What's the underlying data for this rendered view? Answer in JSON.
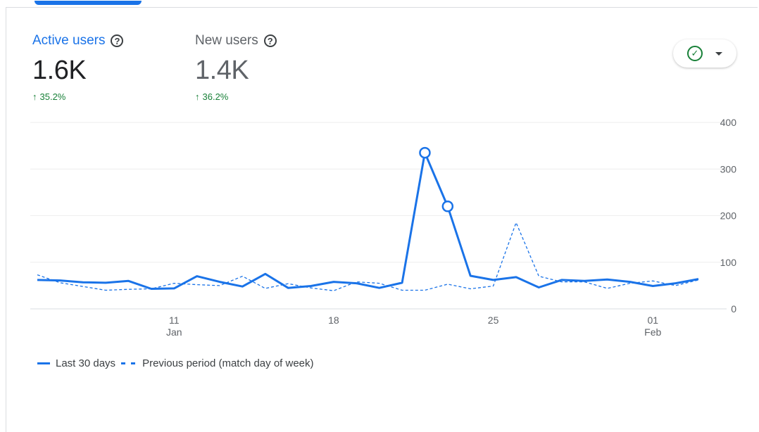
{
  "metrics": [
    {
      "title": "Active users",
      "value": "1.6K",
      "change": "35.2%"
    },
    {
      "title": "New users",
      "value": "1.4K",
      "change": "36.2%"
    }
  ],
  "icons": {
    "help": "?",
    "arrow_up": "↑",
    "check": "✓"
  },
  "legend": {
    "current": "Last 30 days",
    "previous": "Previous period (match day of week)"
  },
  "colors": {
    "accent": "#1a73e8",
    "positive": "#188038"
  },
  "chart_data": {
    "type": "line",
    "ylim": [
      0,
      400
    ],
    "y_ticks": [
      "0",
      "100",
      "200",
      "300",
      "400"
    ],
    "x_ticks": [
      {
        "index": 6,
        "label": "11",
        "sub": "Jan"
      },
      {
        "index": 13,
        "label": "18",
        "sub": ""
      },
      {
        "index": 20,
        "label": "25",
        "sub": ""
      },
      {
        "index": 27,
        "label": "01",
        "sub": "Feb"
      }
    ],
    "series": [
      {
        "name": "Last 30 days",
        "style": "solid",
        "values": [
          62,
          61,
          57,
          56,
          60,
          43,
          44,
          70,
          58,
          48,
          75,
          45,
          49,
          58,
          55,
          45,
          56,
          335,
          220,
          71,
          62,
          68,
          46,
          62,
          60,
          63,
          58,
          49,
          55,
          64
        ],
        "highlight": [
          17,
          18
        ]
      },
      {
        "name": "Previous period (match day of week)",
        "style": "dashed",
        "values": [
          73,
          56,
          48,
          40,
          42,
          43,
          55,
          52,
          50,
          70,
          44,
          54,
          45,
          39,
          58,
          55,
          40,
          40,
          53,
          43,
          49,
          185,
          70,
          58,
          58,
          44,
          55,
          60,
          50,
          62
        ]
      }
    ]
  }
}
